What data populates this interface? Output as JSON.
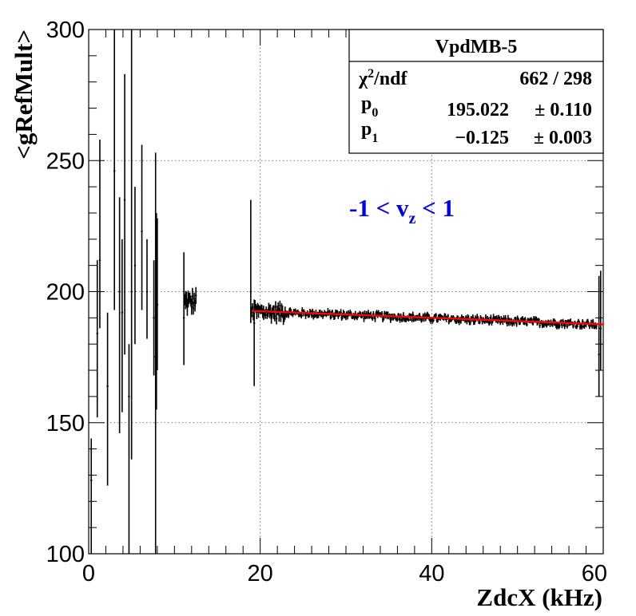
{
  "chart_data": {
    "type": "scatter",
    "xlabel": "ZdcX (kHz)",
    "ylabel": "<gRefMult>",
    "xlim": [
      0,
      60
    ],
    "ylim": [
      100,
      300
    ],
    "x_ticks": [
      "0",
      "20",
      "40",
      "60"
    ],
    "y_ticks": [
      "100",
      "150",
      "200",
      "250",
      "300"
    ],
    "grid": true,
    "stats_box": {
      "title": "VpdMB-5",
      "rows": [
        {
          "label": "χ²/ndf",
          "value": "662 / 298"
        },
        {
          "label": "p0",
          "value": "195.022",
          "error": "± 0.110"
        },
        {
          "label": "p1",
          "value": "−0.125",
          "error": "± 0.003"
        }
      ]
    },
    "annotation": "-1 < vz < 1",
    "fit": {
      "p0": 195.022,
      "p1": -0.125,
      "x_range": [
        19,
        60
      ],
      "color": "#ff0000"
    },
    "series": [
      {
        "color": "#000000",
        "sparse_points": [
          {
            "x": 0.3,
            "y": 128,
            "low": 100,
            "high": 144
          },
          {
            "x": 1.0,
            "y": 184,
            "low": 152,
            "high": 212
          },
          {
            "x": 1.3,
            "y": 212,
            "low": 186,
            "high": 258
          },
          {
            "x": 2.2,
            "y": 164,
            "low": 126,
            "high": 192
          },
          {
            "x": 3.0,
            "y": 246,
            "low": 193,
            "high": 300
          },
          {
            "x": 3.6,
            "y": 200,
            "low": 146,
            "high": 236
          },
          {
            "x": 3.9,
            "y": 192,
            "low": 154,
            "high": 220
          },
          {
            "x": 4.2,
            "y": 235,
            "low": 176,
            "high": 283
          },
          {
            "x": 4.7,
            "y": 160,
            "low": 100,
            "high": 180
          },
          {
            "x": 5.0,
            "y": 200,
            "low": 136,
            "high": 300
          },
          {
            "x": 5.4,
            "y": 210,
            "low": 180,
            "high": 240
          },
          {
            "x": 6.2,
            "y": 223,
            "low": 193,
            "high": 256
          },
          {
            "x": 6.8,
            "y": 200,
            "low": 182,
            "high": 220
          },
          {
            "x": 7.6,
            "y": 190,
            "low": 168,
            "high": 212
          },
          {
            "x": 7.8,
            "y": 175,
            "low": 100,
            "high": 253
          },
          {
            "x": 7.9,
            "y": 200,
            "low": 155,
            "high": 230
          },
          {
            "x": 8.0,
            "y": 195,
            "low": 170,
            "high": 228
          },
          {
            "x": 11.1,
            "y": 190,
            "low": 172,
            "high": 215
          },
          {
            "x": 18.9,
            "y": 200,
            "low": 188,
            "high": 235
          },
          {
            "x": 19.3,
            "y": 188,
            "low": 164,
            "high": 197
          },
          {
            "x": 59.5,
            "y": 176,
            "low": 160,
            "high": 206
          },
          {
            "x": 59.7,
            "y": 186,
            "low": 170,
            "high": 208
          }
        ],
        "dense_segments": [
          {
            "x_start": 11.2,
            "x_end": 12.5,
            "base": 196,
            "slope": 0,
            "spread": 3,
            "err": 2.5
          },
          {
            "x_start": 19.0,
            "x_end": 23.0,
            "base": 192.5,
            "slope": -0.12,
            "spread": 2.5,
            "err": 2.0
          },
          {
            "x_start": 23.0,
            "x_end": 59.3,
            "base": 192.0,
            "slope": -0.125,
            "spread": 1.2,
            "err": 1.0
          }
        ]
      }
    ]
  }
}
